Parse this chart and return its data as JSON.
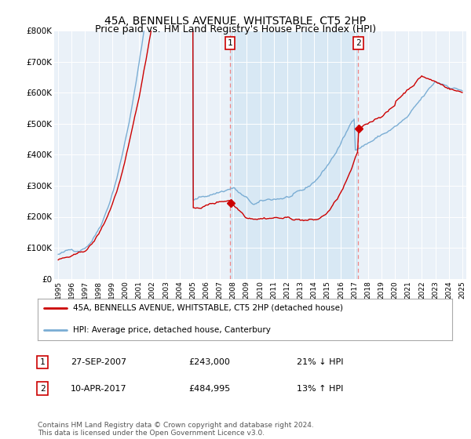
{
  "title": "45A, BENNELLS AVENUE, WHITSTABLE, CT5 2HP",
  "subtitle": "Price paid vs. HM Land Registry's House Price Index (HPI)",
  "ylim": [
    0,
    800000
  ],
  "yticks": [
    0,
    100000,
    200000,
    300000,
    400000,
    500000,
    600000,
    700000,
    800000
  ],
  "ytick_labels": [
    "£0",
    "£100K",
    "£200K",
    "£300K",
    "£400K",
    "£500K",
    "£600K",
    "£700K",
    "£800K"
  ],
  "hpi_color": "#7aadd4",
  "price_color": "#cc0000",
  "vline_color": "#ee8888",
  "shade_color": "#d8e8f4",
  "marker1_year": 2007.75,
  "marker1_price": 243000,
  "marker2_year": 2017.28,
  "marker2_price": 484995,
  "legend_line1": "45A, BENNELLS AVENUE, WHITSTABLE, CT5 2HP (detached house)",
  "legend_line2": "HPI: Average price, detached house, Canterbury",
  "note1_label": "1",
  "note1_date": "27-SEP-2007",
  "note1_price": "£243,000",
  "note1_detail": "21% ↓ HPI",
  "note2_label": "2",
  "note2_date": "10-APR-2017",
  "note2_price": "£484,995",
  "note2_detail": "13% ↑ HPI",
  "footer": "Contains HM Land Registry data © Crown copyright and database right 2024.\nThis data is licensed under the Open Government Licence v3.0.",
  "background_color": "#ffffff",
  "plot_bg_color": "#eaf1f8"
}
